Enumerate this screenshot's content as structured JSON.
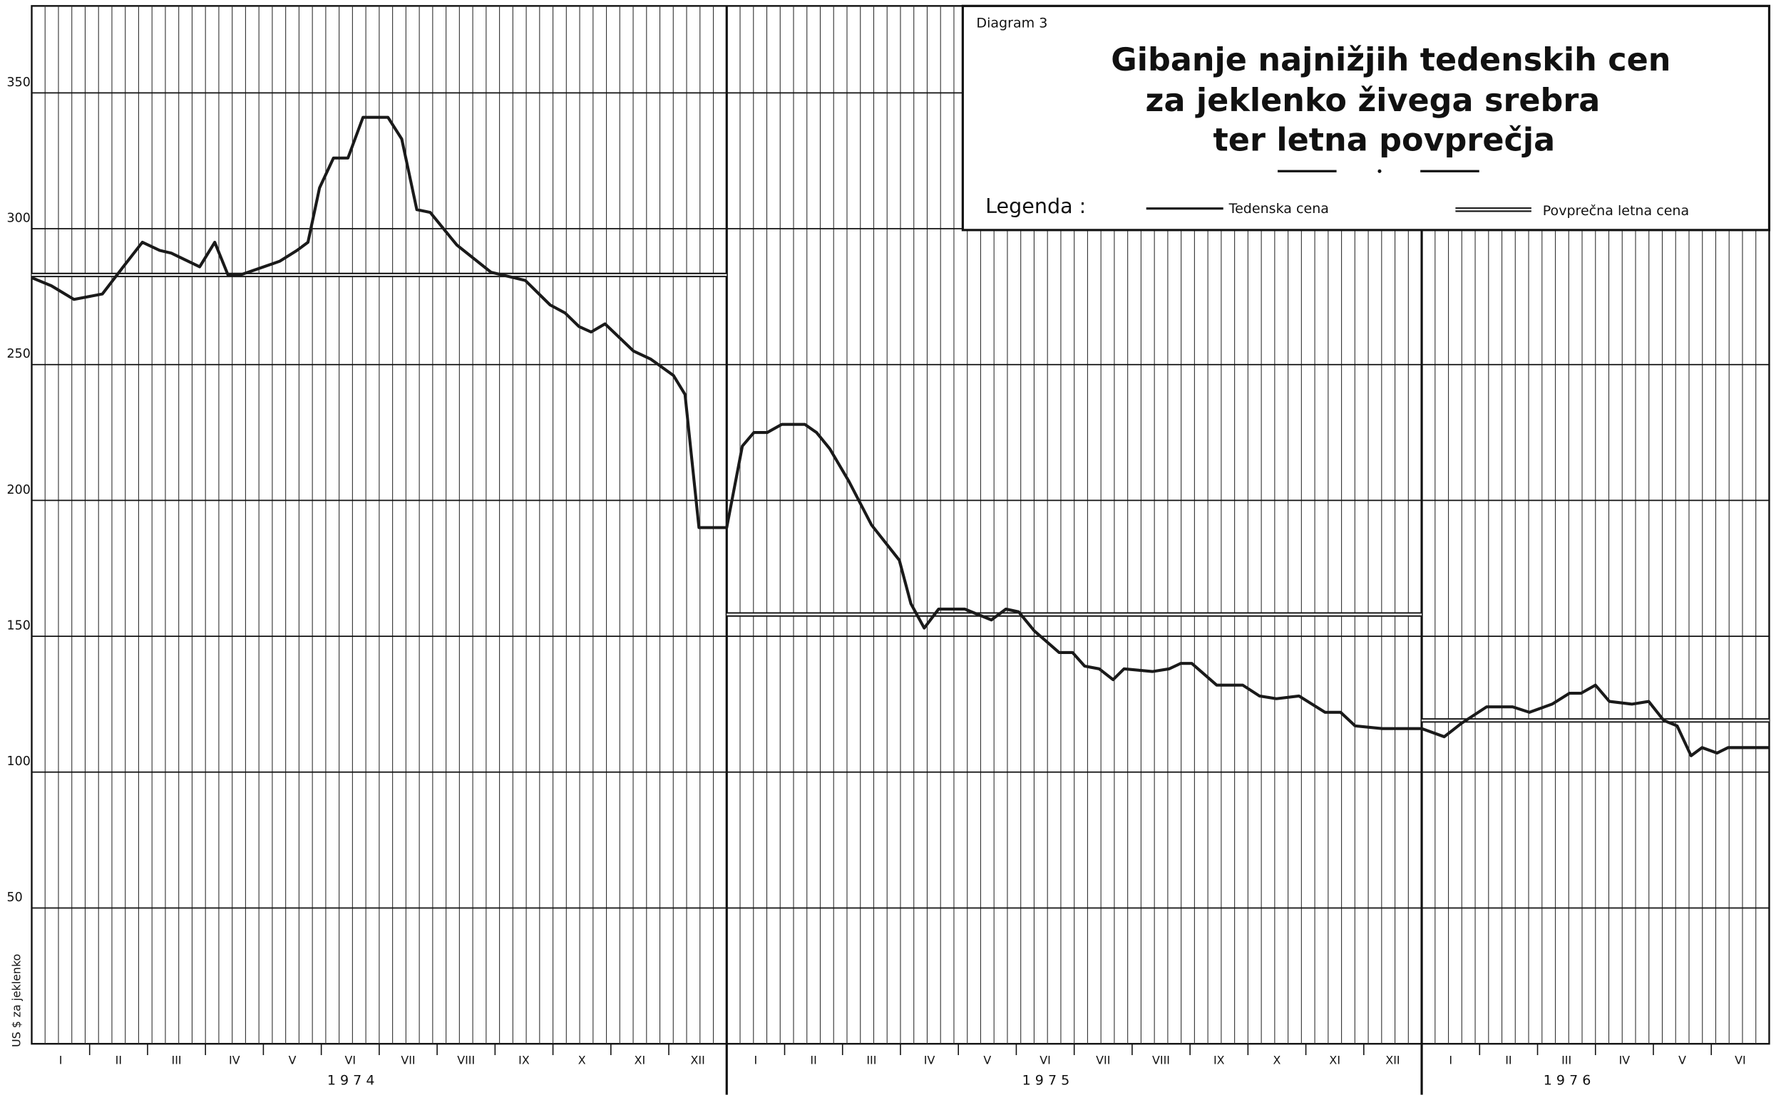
{
  "chart_data": {
    "type": "line",
    "diagram_label": "Diagram 3",
    "title": [
      "Gibanje najnižjih tedenskih cen",
      "za jeklenko živega srebra",
      "ter letna povprečja"
    ],
    "legend_title": "Legenda :",
    "y_label": "US $ za jeklenko",
    "categories": [
      "I",
      "II",
      "III",
      "IV",
      "V",
      "VI",
      "VII",
      "VIII",
      "IX",
      "X",
      "XI",
      "XII",
      "I",
      "II",
      "III",
      "IV",
      "V",
      "VI",
      "VII",
      "VIII",
      "IX",
      "X",
      "XI",
      "XII",
      "I",
      "II",
      "III",
      "IV",
      "V",
      "VI"
    ],
    "years": [
      "1 9 7 4",
      "1 9 7 5",
      "1 9 7 6"
    ],
    "xlim": [
      0,
      30
    ],
    "ylim": [
      0,
      382
    ],
    "yticks": [
      50,
      100,
      150,
      200,
      250,
      300,
      350
    ],
    "grid": true,
    "series": [
      {
        "name": "Tedenska cena",
        "color": "#1a1a1a",
        "x": [
          0,
          0.34,
          0.73,
          1.22,
          1.58,
          1.91,
          2.21,
          2.41,
          2.9,
          3.16,
          3.39,
          3.6,
          4.28,
          4.58,
          4.77,
          4.97,
          5.21,
          5.46,
          5.72,
          6.15,
          6.39,
          6.65,
          6.88,
          7.34,
          7.93,
          8.52,
          8.95,
          9.21,
          9.45,
          9.66,
          9.9,
          10.39,
          10.69,
          11.08,
          11.28,
          11.52,
          12,
          12.27,
          12.47,
          12.7,
          12.95,
          13.35,
          13.55,
          13.78,
          14.11,
          14.5,
          14.98,
          15.18,
          15.41,
          15.66,
          16.11,
          16.34,
          16.57,
          16.82,
          17.04,
          17.31,
          17.74,
          17.97,
          18.18,
          18.43,
          18.67,
          18.86,
          19.35,
          19.64,
          19.84,
          20.03,
          20.46,
          20.91,
          21.2,
          21.49,
          21.88,
          22.33,
          22.6,
          22.85,
          23.32,
          24,
          24.39,
          24.69,
          25.12,
          25.57,
          25.86,
          26.25,
          26.55,
          26.75,
          27,
          27.24,
          27.63,
          27.92,
          28.18,
          28.41,
          28.65,
          28.84,
          29.1,
          29.29,
          30
        ],
        "values": [
          282,
          279,
          274,
          276,
          286,
          295,
          292,
          291,
          286,
          295,
          283,
          283,
          288,
          292,
          295,
          315,
          326,
          326,
          341,
          341,
          333,
          307,
          306,
          294,
          284,
          281,
          272,
          269,
          264,
          262,
          265,
          255,
          252,
          246,
          239,
          190,
          190,
          220,
          225,
          225,
          228,
          228,
          225,
          219,
          207,
          191,
          178,
          162,
          153,
          160,
          160,
          158,
          156,
          160,
          159,
          152,
          144,
          144,
          139,
          138,
          134,
          138,
          137,
          138,
          140,
          140,
          132,
          132,
          128,
          127,
          128,
          122,
          122,
          117,
          116,
          116,
          113,
          118,
          124,
          124,
          122,
          125,
          129,
          129,
          132,
          126,
          125,
          126,
          119,
          117,
          106,
          109,
          107,
          109,
          109
        ]
      },
      {
        "name": "Povprečna letna cena",
        "color": "#1a1a1a",
        "x": [
          0,
          12,
          null,
          12,
          24,
          null,
          24,
          30
        ],
        "values": [
          283,
          283,
          null,
          158,
          158,
          null,
          119,
          119
        ]
      }
    ]
  }
}
